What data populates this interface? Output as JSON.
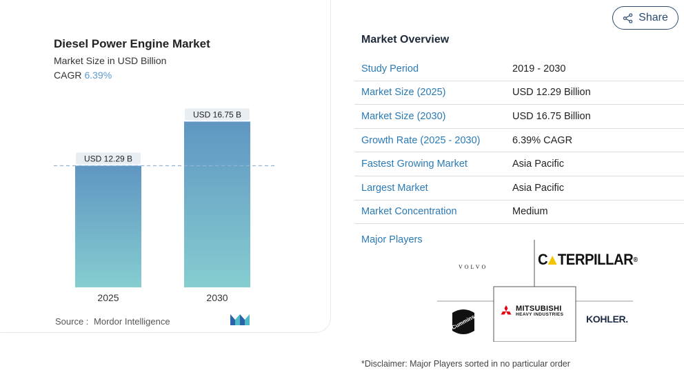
{
  "card": {
    "title": "Diesel Power Engine Market",
    "subtitle": "Market Size in USD Billion",
    "cagr_label": "CAGR",
    "cagr_value": "6.39%",
    "source_label": "Source :",
    "source_value": "Mordor Intelligence"
  },
  "chart_data": {
    "type": "bar",
    "categories": [
      "2025",
      "2030"
    ],
    "values": [
      12.29,
      16.75
    ],
    "data_labels": [
      "USD 12.29 B",
      "USD 16.75 B"
    ],
    "title": "Diesel Power Engine Market",
    "ylabel": "Market Size in USD Billion",
    "ylim": [
      0,
      18.8
    ],
    "reference_line": 12.29,
    "colors": {
      "bar_top": "#5f96c2",
      "bar_bottom": "#86cdd0",
      "label_bg": "#e9eef3",
      "reference": "#8fb4d8"
    }
  },
  "share": {
    "label": "Share"
  },
  "overview": {
    "title": "Market Overview",
    "rows": [
      {
        "key": "Study Period",
        "value": "2019 - 2030"
      },
      {
        "key": "Market Size (2025)",
        "value": "USD 12.29 Billion"
      },
      {
        "key": "Market Size (2030)",
        "value": "USD 16.75 Billion"
      },
      {
        "key": "Growth Rate (2025 - 2030)",
        "value": "6.39% CAGR"
      },
      {
        "key": "Fastest Growing Market",
        "value": "Asia Pacific"
      },
      {
        "key": "Largest Market",
        "value": "Asia Pacific"
      },
      {
        "key": "Market Concentration",
        "value": "Medium"
      }
    ],
    "major_players_label": "Major Players"
  },
  "players": {
    "volvo": "VOLVO",
    "caterpillar_a": "C",
    "caterpillar_b": "TERPILLAR",
    "caterpillar_reg": "®",
    "mitsubishi_1": "MITSUBISHI",
    "mitsubishi_2": "HEAVY INDUSTRIES",
    "cummins": "Cummins",
    "kohler": "KOHLER."
  },
  "disclaimer": "*Disclaimer: Major Players sorted in no particular order",
  "colors": {
    "accent": "#2a7ab5",
    "share_border": "#2c4a70"
  }
}
